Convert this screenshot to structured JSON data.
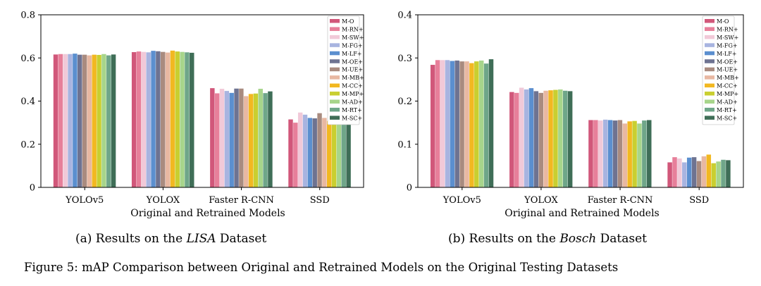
{
  "legend_labels": [
    "M-O",
    "M-RN+",
    "M-SW+",
    "M-FG+",
    "M-LF+",
    "M-OE+",
    "M-UE+",
    "M-MB+",
    "M-CC+",
    "M-MP+",
    "M-AD+",
    "M-RT+",
    "M-SC+"
  ],
  "series_colors": [
    "#d1577a",
    "#e77f9a",
    "#f1c9d8",
    "#a8b4e0",
    "#5b8fcf",
    "#6e7391",
    "#a98b7f",
    "#e8b8a2",
    "#f2b821",
    "#c9cf30",
    "#a7d58b",
    "#6fa689",
    "#3f6e57"
  ],
  "chart_data": [
    {
      "type": "bar",
      "title": "",
      "xlabel": "Original and Retrained Models",
      "ylabel": "",
      "ylim": [
        0,
        0.8
      ],
      "yticks": [
        "0",
        "0.2",
        "0.4",
        "0.6",
        "0.8"
      ],
      "categories": [
        "YOLOv5",
        "YOLOX",
        "Faster R-CNN",
        "SSD"
      ],
      "series": [
        {
          "name": "M-O",
          "values": [
            0.616,
            0.627,
            0.46,
            0.315
          ]
        },
        {
          "name": "M-RN+",
          "values": [
            0.618,
            0.63,
            0.436,
            0.3
          ]
        },
        {
          "name": "M-SW+",
          "values": [
            0.618,
            0.628,
            0.457,
            0.347
          ]
        },
        {
          "name": "M-FG+",
          "values": [
            0.618,
            0.626,
            0.447,
            0.337
          ]
        },
        {
          "name": "M-LF+",
          "values": [
            0.62,
            0.633,
            0.438,
            0.322
          ]
        },
        {
          "name": "M-OE+",
          "values": [
            0.615,
            0.631,
            0.458,
            0.32
          ]
        },
        {
          "name": "M-UE+",
          "values": [
            0.615,
            0.628,
            0.458,
            0.344
          ]
        },
        {
          "name": "M-MB+",
          "values": [
            0.612,
            0.625,
            0.423,
            0.322
          ]
        },
        {
          "name": "M-CC+",
          "values": [
            0.615,
            0.634,
            0.433,
            0.308
          ]
        },
        {
          "name": "M-MP+",
          "values": [
            0.614,
            0.63,
            0.435,
            0.305
          ]
        },
        {
          "name": "M-AD+",
          "values": [
            0.618,
            0.628,
            0.457,
            0.309
          ]
        },
        {
          "name": "M-RT+",
          "values": [
            0.612,
            0.626,
            0.437,
            0.306
          ]
        },
        {
          "name": "M-SC+",
          "values": [
            0.616,
            0.624,
            0.445,
            0.312
          ]
        }
      ]
    },
    {
      "type": "bar",
      "title": "",
      "xlabel": "Original and Retrained Models",
      "ylabel": "",
      "ylim": [
        0,
        0.4
      ],
      "yticks": [
        "0",
        "0.1",
        "0.2",
        "0.3",
        "0.4"
      ],
      "categories": [
        "YOLOv5",
        "YOLOX",
        "Faster R-CNN",
        "SSD"
      ],
      "series": [
        {
          "name": "M-O",
          "values": [
            0.284,
            0.221,
            0.156,
            0.058
          ]
        },
        {
          "name": "M-RN+",
          "values": [
            0.295,
            0.219,
            0.156,
            0.07
          ]
        },
        {
          "name": "M-SW+",
          "values": [
            0.295,
            0.231,
            0.155,
            0.067
          ]
        },
        {
          "name": "M-FG+",
          "values": [
            0.295,
            0.227,
            0.157,
            0.058
          ]
        },
        {
          "name": "M-LF+",
          "values": [
            0.293,
            0.23,
            0.156,
            0.069
          ]
        },
        {
          "name": "M-OE+",
          "values": [
            0.294,
            0.223,
            0.155,
            0.07
          ]
        },
        {
          "name": "M-UE+",
          "values": [
            0.292,
            0.219,
            0.156,
            0.061
          ]
        },
        {
          "name": "M-MB+",
          "values": [
            0.292,
            0.224,
            0.148,
            0.072
          ]
        },
        {
          "name": "M-CC+",
          "values": [
            0.288,
            0.225,
            0.153,
            0.076
          ]
        },
        {
          "name": "M-MP+",
          "values": [
            0.292,
            0.226,
            0.154,
            0.056
          ]
        },
        {
          "name": "M-AD+",
          "values": [
            0.294,
            0.227,
            0.148,
            0.06
          ]
        },
        {
          "name": "M-RT+",
          "values": [
            0.287,
            0.224,
            0.155,
            0.064
          ]
        },
        {
          "name": "M-SC+",
          "values": [
            0.297,
            0.223,
            0.156,
            0.063
          ]
        }
      ]
    }
  ],
  "captions": {
    "a_prefix": "(a) Results on the ",
    "a_dataset": "LISA",
    "a_suffix": " Dataset",
    "b_prefix": "(b) Results on the ",
    "b_dataset": "Bosch",
    "b_suffix": " Dataset",
    "figure": "Figure 5: mAP Comparison between Original and Retrained Models on the Original Testing Datasets"
  }
}
